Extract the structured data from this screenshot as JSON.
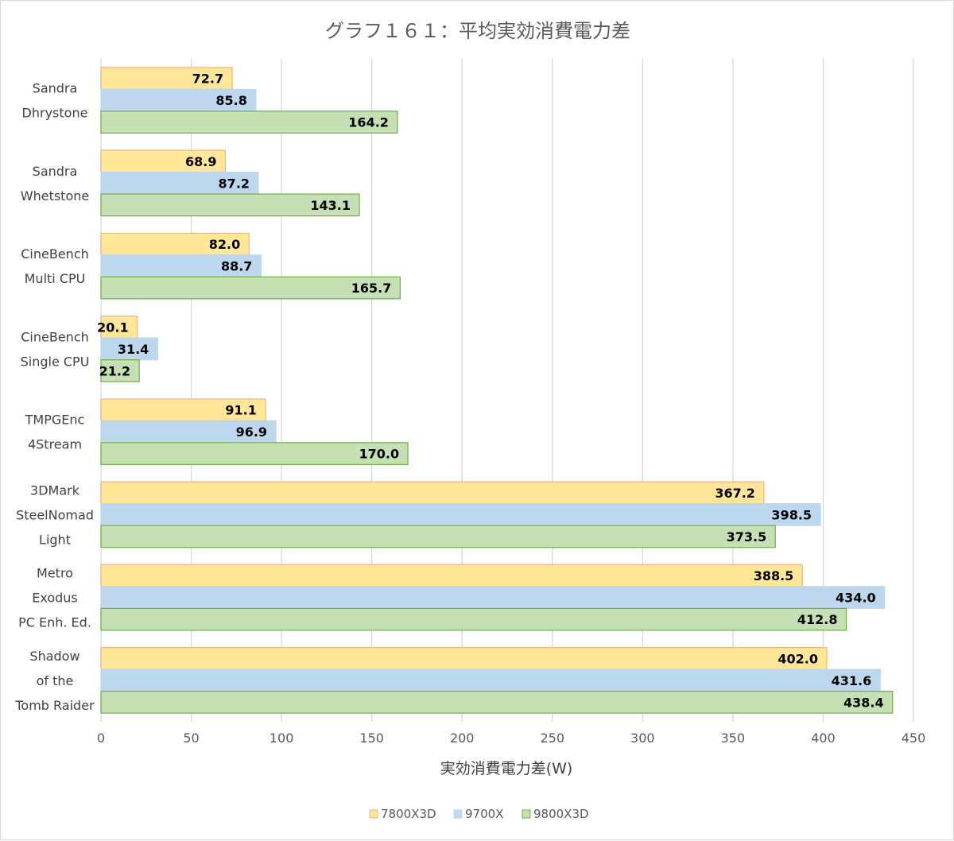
{
  "chart_data": {
    "type": "bar",
    "orientation": "horizontal",
    "title": "グラフ１６１：平均実効消費電力差",
    "xlabel": "実効消費電力差(W)",
    "ylabel": "",
    "xlim": [
      0,
      450
    ],
    "xticks": [
      0,
      50,
      100,
      150,
      200,
      250,
      300,
      350,
      400,
      450
    ],
    "grid": true,
    "legend_position": "bottom",
    "categories": [
      [
        "Sandra",
        "Dhrystone"
      ],
      [
        "Sandra",
        "Whetstone"
      ],
      [
        "CineBench",
        "Multi CPU"
      ],
      [
        "CineBench",
        "Single CPU"
      ],
      [
        "TMPGEnc",
        "4Stream"
      ],
      [
        "3DMark",
        "SteelNomad",
        "Light"
      ],
      [
        "Metro",
        "Exodus",
        "PC Enh. Ed."
      ],
      [
        "Shadow",
        "of the",
        "Tomb Raider"
      ]
    ],
    "series": [
      {
        "name": "7800X3D",
        "color": "#ffe699",
        "stroke": "#f4b183",
        "values": [
          72.7,
          68.9,
          82.0,
          20.1,
          91.1,
          367.2,
          388.5,
          402.0
        ],
        "labels": [
          "72.7",
          "68.9",
          "82.0",
          "20.1",
          "91.1",
          "367.2",
          "388.5",
          "402.0"
        ]
      },
      {
        "name": "9700X",
        "color": "#bdd7ee",
        "stroke": "#bdd7ee",
        "values": [
          85.8,
          87.2,
          88.7,
          31.4,
          96.9,
          398.5,
          434.0,
          431.6
        ],
        "labels": [
          "85.8",
          "87.2",
          "88.7",
          "31.4",
          "96.9",
          "398.5",
          "434.0",
          "431.6"
        ]
      },
      {
        "name": "9800X3D",
        "color": "#c5e0b4",
        "stroke": "#70ad47",
        "values": [
          164.2,
          143.1,
          165.7,
          21.2,
          170.0,
          373.5,
          412.8,
          438.4
        ],
        "labels": [
          "164.2",
          "143.1",
          "165.7",
          "21.2",
          "170.0",
          "373.5",
          "412.8",
          "438.4"
        ]
      }
    ]
  }
}
